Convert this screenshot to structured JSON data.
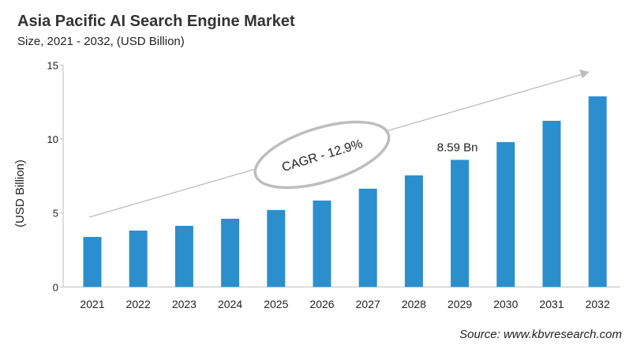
{
  "chart_data": {
    "type": "bar",
    "title": "Asia Pacific AI Search Engine Market",
    "subtitle": "Size, 2021 - 2032, (USD Billion)",
    "xlabel": "",
    "ylabel": "(USD Billion)",
    "ylim": [
      0,
      15
    ],
    "yticks": [
      0,
      5,
      10,
      15
    ],
    "grid": false,
    "categories": [
      "2021",
      "2022",
      "2023",
      "2024",
      "2025",
      "2026",
      "2027",
      "2028",
      "2029",
      "2030",
      "2031",
      "2032"
    ],
    "values": [
      3.38,
      3.81,
      4.13,
      4.61,
      5.2,
      5.84,
      6.64,
      7.54,
      8.59,
      9.79,
      11.23,
      12.88
    ],
    "bar_color": "#2b8fce",
    "annotations": {
      "data_label": {
        "category": "2029",
        "text": "8.59 Bn"
      },
      "cagr": "CAGR - 12.9%"
    },
    "source": "Source: www.kbvresearch.com"
  }
}
